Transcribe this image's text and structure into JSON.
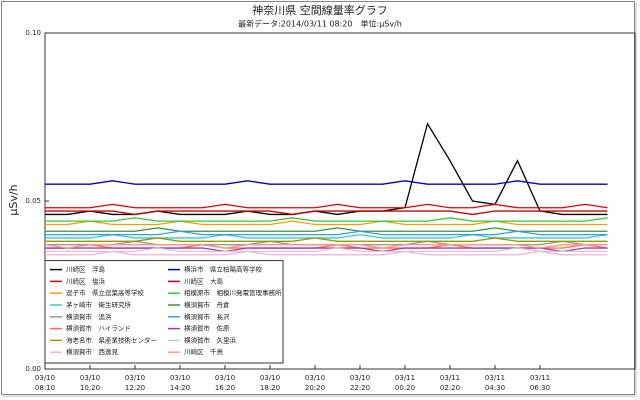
{
  "chart_data": {
    "type": "line",
    "title": "神奈川県 空間線量率グラフ",
    "subtitle": "最新データ:2014/03/11 08:20　単位:μSv/h",
    "y_label": "μSv/h",
    "categories": [
      "03/10 08:10",
      null,
      "03/10 10:20",
      null,
      "03/10 12:20",
      null,
      "03/10 14:20",
      null,
      "03/10 16:20",
      null,
      "03/10 18:20",
      null,
      "03/10 20:20",
      null,
      "03/10 22:20",
      null,
      "03/11 00:20",
      null,
      "03/11 02:20",
      null,
      "03/11 04:30",
      null,
      "03/11 06:30",
      null,
      null,
      null
    ],
    "ylim": [
      0,
      0.1
    ],
    "yticks": [
      {
        "value": 0,
        "label": "0.00"
      },
      {
        "value": 0.05,
        "label": "0.05"
      },
      {
        "value": 0.1,
        "label": "0.10"
      }
    ],
    "grid": false,
    "legend": "lower-left",
    "series": [
      {
        "name": "川崎区　浮島",
        "color": "#000000",
        "values": [
          0.046,
          0.046,
          0.047,
          0.046,
          0.046,
          0.047,
          0.046,
          0.046,
          0.046,
          0.047,
          0.046,
          0.046,
          0.047,
          0.046,
          0.047,
          0.047,
          0.048,
          0.073,
          0.062,
          0.05,
          0.049,
          0.062,
          0.047,
          0.046,
          0.046,
          0.046
        ]
      },
      {
        "name": "川崎区　塩浜",
        "color": "#e00000",
        "values": [
          0.048,
          0.048,
          0.048,
          0.049,
          0.048,
          0.048,
          0.048,
          0.048,
          0.049,
          0.048,
          0.048,
          0.048,
          0.048,
          0.049,
          0.048,
          0.048,
          0.048,
          0.049,
          0.048,
          0.048,
          0.049,
          0.048,
          0.048,
          0.048,
          0.049,
          0.048
        ]
      },
      {
        "name": "逗子市　県立逗葉高等学校",
        "color": "#ff9900",
        "values": [
          0.043,
          0.043,
          0.044,
          0.043,
          0.043,
          0.043,
          0.044,
          0.043,
          0.043,
          0.043,
          0.043,
          0.044,
          0.043,
          0.043,
          0.043,
          0.044,
          0.043,
          0.043,
          0.043,
          0.043,
          0.044,
          0.043,
          0.043,
          0.043,
          0.043,
          0.043
        ]
      },
      {
        "name": "茅ヶ崎市　衛生研究所",
        "color": "#33cccc",
        "values": [
          0.039,
          0.039,
          0.039,
          0.04,
          0.039,
          0.039,
          0.039,
          0.039,
          0.04,
          0.039,
          0.039,
          0.039,
          0.039,
          0.039,
          0.04,
          0.039,
          0.039,
          0.039,
          0.039,
          0.04,
          0.039,
          0.039,
          0.039,
          0.039,
          0.039,
          0.04
        ]
      },
      {
        "name": "横須賀市　追浜",
        "color": "#999999",
        "values": [
          0.037,
          0.037,
          0.037,
          0.037,
          0.038,
          0.037,
          0.037,
          0.037,
          0.037,
          0.037,
          0.038,
          0.037,
          0.037,
          0.037,
          0.037,
          0.037,
          0.037,
          0.038,
          0.037,
          0.037,
          0.037,
          0.037,
          0.037,
          0.038,
          0.037,
          0.037
        ]
      },
      {
        "name": "横須賀市　ハイランド",
        "color": "#ff7744",
        "values": [
          0.036,
          0.036,
          0.037,
          0.036,
          0.036,
          0.036,
          0.036,
          0.037,
          0.036,
          0.036,
          0.036,
          0.036,
          0.036,
          0.037,
          0.036,
          0.036,
          0.036,
          0.036,
          0.037,
          0.036,
          0.036,
          0.036,
          0.036,
          0.036,
          0.037,
          0.036
        ]
      },
      {
        "name": "海老名市　県産業技術センター",
        "color": "#999900",
        "values": [
          0.038,
          0.038,
          0.038,
          0.038,
          0.038,
          0.039,
          0.038,
          0.038,
          0.038,
          0.038,
          0.038,
          0.038,
          0.039,
          0.038,
          0.038,
          0.038,
          0.038,
          0.038,
          0.038,
          0.038,
          0.039,
          0.038,
          0.038,
          0.038,
          0.038,
          0.038
        ]
      },
      {
        "name": "横須賀市　西逸見",
        "color": "#ffaadd",
        "values": [
          0.034,
          0.034,
          0.034,
          0.035,
          0.034,
          0.034,
          0.034,
          0.034,
          0.034,
          0.035,
          0.034,
          0.034,
          0.034,
          0.034,
          0.034,
          0.034,
          0.035,
          0.034,
          0.034,
          0.034,
          0.034,
          0.034,
          0.035,
          0.034,
          0.034,
          0.034
        ]
      },
      {
        "name": "横浜市　県立柏陽高等学校",
        "color": "#0000cc",
        "values": [
          0.055,
          0.055,
          0.055,
          0.056,
          0.055,
          0.055,
          0.055,
          0.055,
          0.055,
          0.056,
          0.055,
          0.055,
          0.055,
          0.055,
          0.055,
          0.055,
          0.056,
          0.055,
          0.055,
          0.055,
          0.055,
          0.056,
          0.055,
          0.055,
          0.055,
          0.055
        ]
      },
      {
        "name": "川崎区　大島",
        "color": "#cc0000",
        "values": [
          0.047,
          0.047,
          0.047,
          0.047,
          0.046,
          0.047,
          0.047,
          0.047,
          0.047,
          0.047,
          0.047,
          0.046,
          0.047,
          0.047,
          0.047,
          0.047,
          0.047,
          0.047,
          0.047,
          0.046,
          0.047,
          0.047,
          0.047,
          0.047,
          0.047,
          0.047
        ]
      },
      {
        "name": "相模原市　相模川発電管理事務所",
        "color": "#33cc33",
        "values": [
          0.044,
          0.044,
          0.044,
          0.044,
          0.045,
          0.044,
          0.044,
          0.044,
          0.044,
          0.044,
          0.044,
          0.045,
          0.044,
          0.044,
          0.044,
          0.044,
          0.044,
          0.044,
          0.045,
          0.044,
          0.044,
          0.044,
          0.044,
          0.044,
          0.044,
          0.045
        ]
      },
      {
        "name": "横須賀市　舟倉",
        "color": "#339933",
        "values": [
          0.041,
          0.041,
          0.041,
          0.041,
          0.041,
          0.042,
          0.041,
          0.041,
          0.041,
          0.041,
          0.041,
          0.041,
          0.041,
          0.042,
          0.041,
          0.041,
          0.041,
          0.041,
          0.041,
          0.041,
          0.042,
          0.041,
          0.041,
          0.041,
          0.041,
          0.041
        ]
      },
      {
        "name": "横須賀市　長沢",
        "color": "#3399ff",
        "values": [
          0.04,
          0.04,
          0.04,
          0.04,
          0.04,
          0.04,
          0.041,
          0.04,
          0.04,
          0.04,
          0.04,
          0.04,
          0.04,
          0.04,
          0.041,
          0.04,
          0.04,
          0.04,
          0.04,
          0.04,
          0.04,
          0.041,
          0.04,
          0.04,
          0.04,
          0.04
        ]
      },
      {
        "name": "横須賀市　佐原",
        "color": "#aa33cc",
        "values": [
          0.036,
          0.036,
          0.036,
          0.036,
          0.036,
          0.036,
          0.036,
          0.036,
          0.035,
          0.036,
          0.036,
          0.036,
          0.036,
          0.036,
          0.036,
          0.035,
          0.036,
          0.036,
          0.036,
          0.036,
          0.036,
          0.036,
          0.036,
          0.035,
          0.036,
          0.036
        ]
      },
      {
        "name": "横須賀市　久里浜",
        "color": "#cccccc",
        "values": [
          0.035,
          0.035,
          0.035,
          0.035,
          0.035,
          0.036,
          0.035,
          0.035,
          0.035,
          0.035,
          0.035,
          0.035,
          0.035,
          0.036,
          0.035,
          0.035,
          0.035,
          0.035,
          0.035,
          0.035,
          0.035,
          0.036,
          0.035,
          0.035,
          0.035,
          0.035
        ]
      },
      {
        "name": "川崎区　千鳥",
        "color": "#ff9977",
        "values": [
          0.037,
          0.036,
          0.037,
          0.037,
          0.037,
          0.037,
          0.037,
          0.037,
          0.036,
          0.037,
          0.037,
          0.037,
          0.037,
          0.037,
          0.037,
          0.036,
          0.037,
          0.037,
          0.037,
          0.037,
          0.037,
          0.037,
          0.036,
          0.037,
          0.037,
          0.037
        ]
      }
    ]
  }
}
